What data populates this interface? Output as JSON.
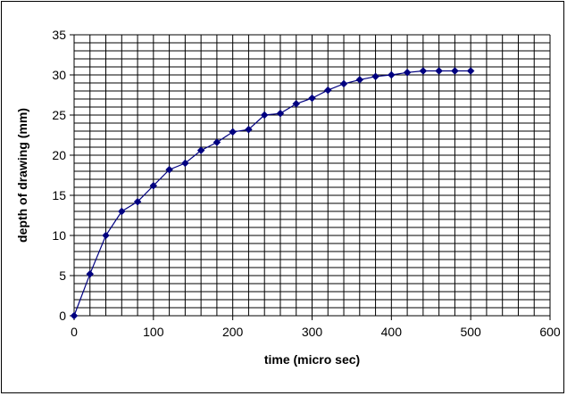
{
  "chart_data": {
    "type": "line",
    "title": "",
    "xlabel": "time (micro sec)",
    "ylabel": "depth of drawing (mm)",
    "xlim": [
      0,
      600
    ],
    "ylim": [
      0,
      35
    ],
    "x_ticks": [
      "0",
      "100",
      "200",
      "300",
      "400",
      "500",
      "600"
    ],
    "y_ticks": [
      "0",
      "5",
      "10",
      "15",
      "20",
      "25",
      "30",
      "35"
    ],
    "grid": true,
    "legend": "none",
    "series": [
      {
        "color": "#000080",
        "marker": "diamond",
        "points": [
          [
            0,
            0
          ],
          [
            20,
            5.2
          ],
          [
            40,
            10
          ],
          [
            60,
            13
          ],
          [
            80,
            14.2
          ],
          [
            100,
            16.2
          ],
          [
            120,
            18.2
          ],
          [
            140,
            19
          ],
          [
            160,
            20.6
          ],
          [
            180,
            21.6
          ],
          [
            200,
            22.9
          ],
          [
            220,
            23.2
          ],
          [
            240,
            25
          ],
          [
            260,
            25.2
          ],
          [
            280,
            26.4
          ],
          [
            300,
            27.1
          ],
          [
            320,
            28.1
          ],
          [
            340,
            28.9
          ],
          [
            360,
            29.4
          ],
          [
            380,
            29.8
          ],
          [
            400,
            30
          ],
          [
            420,
            30.3
          ],
          [
            440,
            30.5
          ],
          [
            460,
            30.5
          ],
          [
            480,
            30.5
          ],
          [
            500,
            30.5
          ]
        ]
      }
    ]
  }
}
